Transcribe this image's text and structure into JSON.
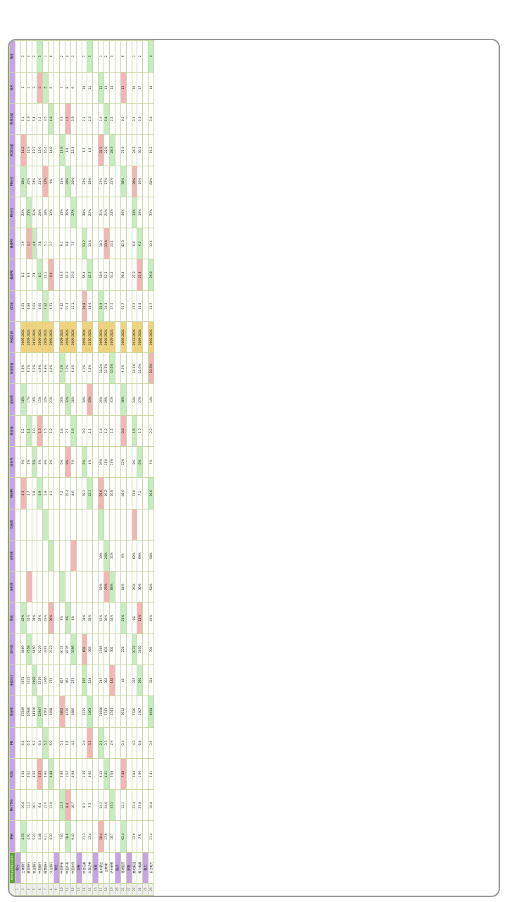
{
  "sheet": {
    "site": "www.yulejia.com",
    "headers": [
      "更新",
      "PE(TTM)",
      "ROE",
      "PB",
      "股息率",
      "市值(亿)",
      "净利润",
      "营收",
      "净利率",
      "毛利率",
      "负债率",
      "预测PE",
      "成长性",
      "现金流",
      "波动率",
      "年化收益",
      "估值区间",
      "近5年",
      "最高PE",
      "最低PE",
      "PE分位",
      "PB分位",
      "ROE均值",
      "股息均值",
      "排名",
      "备注"
    ],
    "groups": [
      "银行",
      "保险",
      "证券",
      "白酒",
      "医药",
      "家电",
      "电力"
    ],
    "rows": [
      {
        "n": "工商银行",
        "v": [
          "4.55",
          "10.8",
          "0.58",
          "6.8",
          "17289",
          "3651",
          "8609",
          "42%",
          "",
          "",
          "",
          "4.3",
          "3%",
          "1.2",
          "18%",
          "5.6%",
          "2009-2024",
          "4.61",
          "8.2",
          "3.9",
          "22%",
          "18%",
          "14.2",
          "5.1",
          "1",
          "3"
        ]
      },
      {
        "n": "建设银行",
        "v": [
          "4.92",
          "11.2",
          "0.62",
          "6.5",
          "16980",
          "3325",
          "7558",
          "44%",
          "",
          "",
          "",
          "4.7",
          "4%",
          "1.1",
          "17%",
          "6.1%",
          "2009-2024",
          "4.88",
          "8.9",
          "4.1",
          "25%",
          "20%",
          "14.9",
          "4.9",
          "2",
          "4"
        ]
      },
      {
        "n": "农业银行",
        "v": [
          "5.21",
          "10.1",
          "0.56",
          "6.2",
          "14356",
          "2693",
          "6950",
          "39%",
          "",
          "",
          "",
          "5.0",
          "5%",
          "1.0",
          "16%",
          "5.2%",
          "2010-2024",
          "5.01",
          "7.6",
          "4.0",
          "31%",
          "24%",
          "13.7",
          "5.4",
          "3",
          "2"
        ]
      },
      {
        "n": "中国银行",
        "v": [
          "5.08",
          "9.4",
          "0.53",
          "6.4",
          "12987",
          "2319",
          "6229",
          "37%",
          "",
          "",
          "",
          "4.9",
          "3%",
          "1.3",
          "15%",
          "4.9%",
          "2009-2024",
          "4.95",
          "8.1",
          "3.8",
          "28%",
          "21%",
          "12.6",
          "5.2",
          "4",
          "5"
        ]
      },
      {
        "n": "招商银行",
        "v": [
          "6.11",
          "15.6",
          "0.94",
          "5.2",
          "8563",
          "1466",
          "3391",
          "43%",
          "",
          "",
          "",
          "5.8",
          "8%",
          "1.5",
          "24%",
          "9.8%",
          "2009-2024",
          "7.32",
          "14.2",
          "5.1",
          "18%",
          "12%",
          "16.4",
          "3.6",
          "5",
          "1"
        ]
      },
      {
        "n": "兴业银行",
        "v": [
          "4.33",
          "11.0",
          "0.48",
          "6.9",
          "3698",
          "775",
          "2123",
          "36%",
          "",
          "",
          "",
          "4.1",
          "2%",
          "1.2",
          "21%",
          "4.4%",
          "2009-2024",
          "4.71",
          "9.6",
          "3.7",
          "12%",
          "9%",
          "14.8",
          "4.8",
          "6",
          "6"
        ]
      },
      {
        "n": "中国平安",
        "v": [
          "7.85",
          "12.3",
          "0.96",
          "5.1",
          "7892",
          "857",
          "9137",
          "9%",
          "",
          "",
          "",
          "7.2",
          "6%",
          "1.8",
          "26%",
          "7.1%",
          "2009-2024",
          "9.12",
          "18.3",
          "6.1",
          "15%",
          "11%",
          "17.9",
          "3.3",
          "7",
          "2"
        ]
      },
      {
        "n": "中国人寿",
        "v": [
          "18.6",
          "8.4",
          "1.52",
          "1.6",
          "8126",
          "461",
          "8226",
          "6%",
          "",
          "",
          "",
          "15.4",
          "9%",
          "2.1",
          "32%",
          "3.2%",
          "2009-2024",
          "22.4",
          "41.2",
          "9.8",
          "36%",
          "29%",
          "9.8",
          "1.5",
          "8",
          "4"
        ]
      },
      {
        "n": "中国太保",
        "v": [
          "9.42",
          "10.7",
          "0.98",
          "4.2",
          "2986",
          "273",
          "3396",
          "8%",
          "",
          "",
          "",
          "8.6",
          "7%",
          "1.6",
          "28%",
          "6.4%",
          "2009-2024",
          "12.1",
          "23.6",
          "7.5",
          "27%",
          "20%",
          "12.1",
          "3.9",
          "9",
          "3"
        ]
      },
      {
        "n": "中信证券",
        "v": [
          "21.3",
          "8.1",
          "1.36",
          "2.4",
          "3215",
          "197",
          "601",
          "33%",
          "",
          "",
          "",
          "19.2",
          "5%",
          "0.9",
          "34%",
          "4.1%",
          "2009-2024",
          "24.8",
          "56.4",
          "13.2",
          "38%",
          "32%",
          "9.2",
          "2.1",
          "10",
          "7"
        ]
      },
      {
        "n": "华泰证券",
        "v": [
          "13.4",
          "7.3",
          "0.92",
          "3.1",
          "1463",
          "128",
          "366",
          "35%",
          "",
          "",
          "",
          "12.1",
          "4%",
          "1.1",
          "33%",
          "3.8%",
          "2010-2024",
          "18.6",
          "41.7",
          "10.4",
          "22%",
          "18%",
          "8.6",
          "2.6",
          "11",
          "5"
        ]
      },
      {
        "n": "贵州茅台",
        "v": [
          "28.4",
          "34.2",
          "9.12",
          "2.1",
          "21680",
          "747",
          "1505",
          "52%",
          "92%",
          "19%",
          "",
          "25.6",
          "16%",
          "1.4",
          "25%",
          "18.2%",
          "2009-2024",
          "33.9",
          "58.6",
          "18.3",
          "31%",
          "27%",
          "31.5",
          "1.6",
          "12",
          "1"
        ]
      },
      {
        "n": "五粮液",
        "v": [
          "17.9",
          "24.6",
          "4.21",
          "3.3",
          "5743",
          "302",
          "832",
          "36%",
          "76%",
          "24%",
          "",
          "16.2",
          "11%",
          "1.2",
          "29%",
          "12.7%",
          "2009-2024",
          "26.3",
          "52.1",
          "13.4",
          "21%",
          "17%",
          "22.8",
          "2.4",
          "13",
          "2"
        ]
      },
      {
        "n": "泸州老窖",
        "v": [
          "18.7",
          "33.5",
          "6.08",
          "2.9",
          "2541",
          "132",
          "302",
          "44%",
          "88%",
          "31%",
          "",
          "16.8",
          "17%",
          "1.1",
          "31%",
          "15.4%",
          "2009-2024",
          "27.5",
          "61.2",
          "14.1",
          "24%",
          "22%",
          "28.3",
          "2.1",
          "14",
          "3"
        ]
      },
      {
        "n": "恒瑞医药",
        "v": [
          "62.4",
          "12.1",
          "7.48",
          "0.4",
          "3012",
          "48",
          "228",
          "21%",
          "84%",
          "9%",
          "",
          "48.6",
          "12%",
          "0.8",
          "30%",
          "6.3%",
          "2009-2024",
          "61.7",
          "98.4",
          "42.3",
          "46%",
          "38%",
          "21.4",
          "0.5",
          "15",
          "6"
        ]
      },
      {
        "n": "美的集团",
        "v": [
          "12.9",
          "22.4",
          "2.84",
          "4.3",
          "5126",
          "337",
          "3737",
          "9%",
          "26%",
          "62%",
          "",
          "11.8",
          "9%",
          "1.6",
          "24%",
          "14.1%",
          "2013-2024",
          "15.2",
          "27.3",
          "9.6",
          "33%",
          "30%",
          "24.7",
          "3.1",
          "16",
          "1"
        ]
      },
      {
        "n": "格力电器",
        "v": [
          "7.6",
          "27.8",
          "1.96",
          "6.8",
          "2307",
          "291",
          "2050",
          "14%",
          "30%",
          "69%",
          "",
          "7.1",
          "6%",
          "1.5",
          "27%",
          "11.6%",
          "2009-2024",
          "10.8",
          "21.4",
          "6.2",
          "19%",
          "16%",
          "30.1",
          "5.3",
          "17",
          "2"
        ]
      },
      {
        "n": "长江电力",
        "v": [
          "21.4",
          "16.8",
          "3.41",
          "3.6",
          "6934",
          "324",
          "781",
          "41%",
          "58%",
          "58%",
          "",
          "19.6",
          "7%",
          "2.2",
          "14%",
          "10.3%",
          "2009-2024",
          "18.7",
          "26.9",
          "12.1",
          "72%",
          "68%",
          "15.2",
          "3.8",
          "18",
          "4"
        ]
      }
    ]
  }
}
